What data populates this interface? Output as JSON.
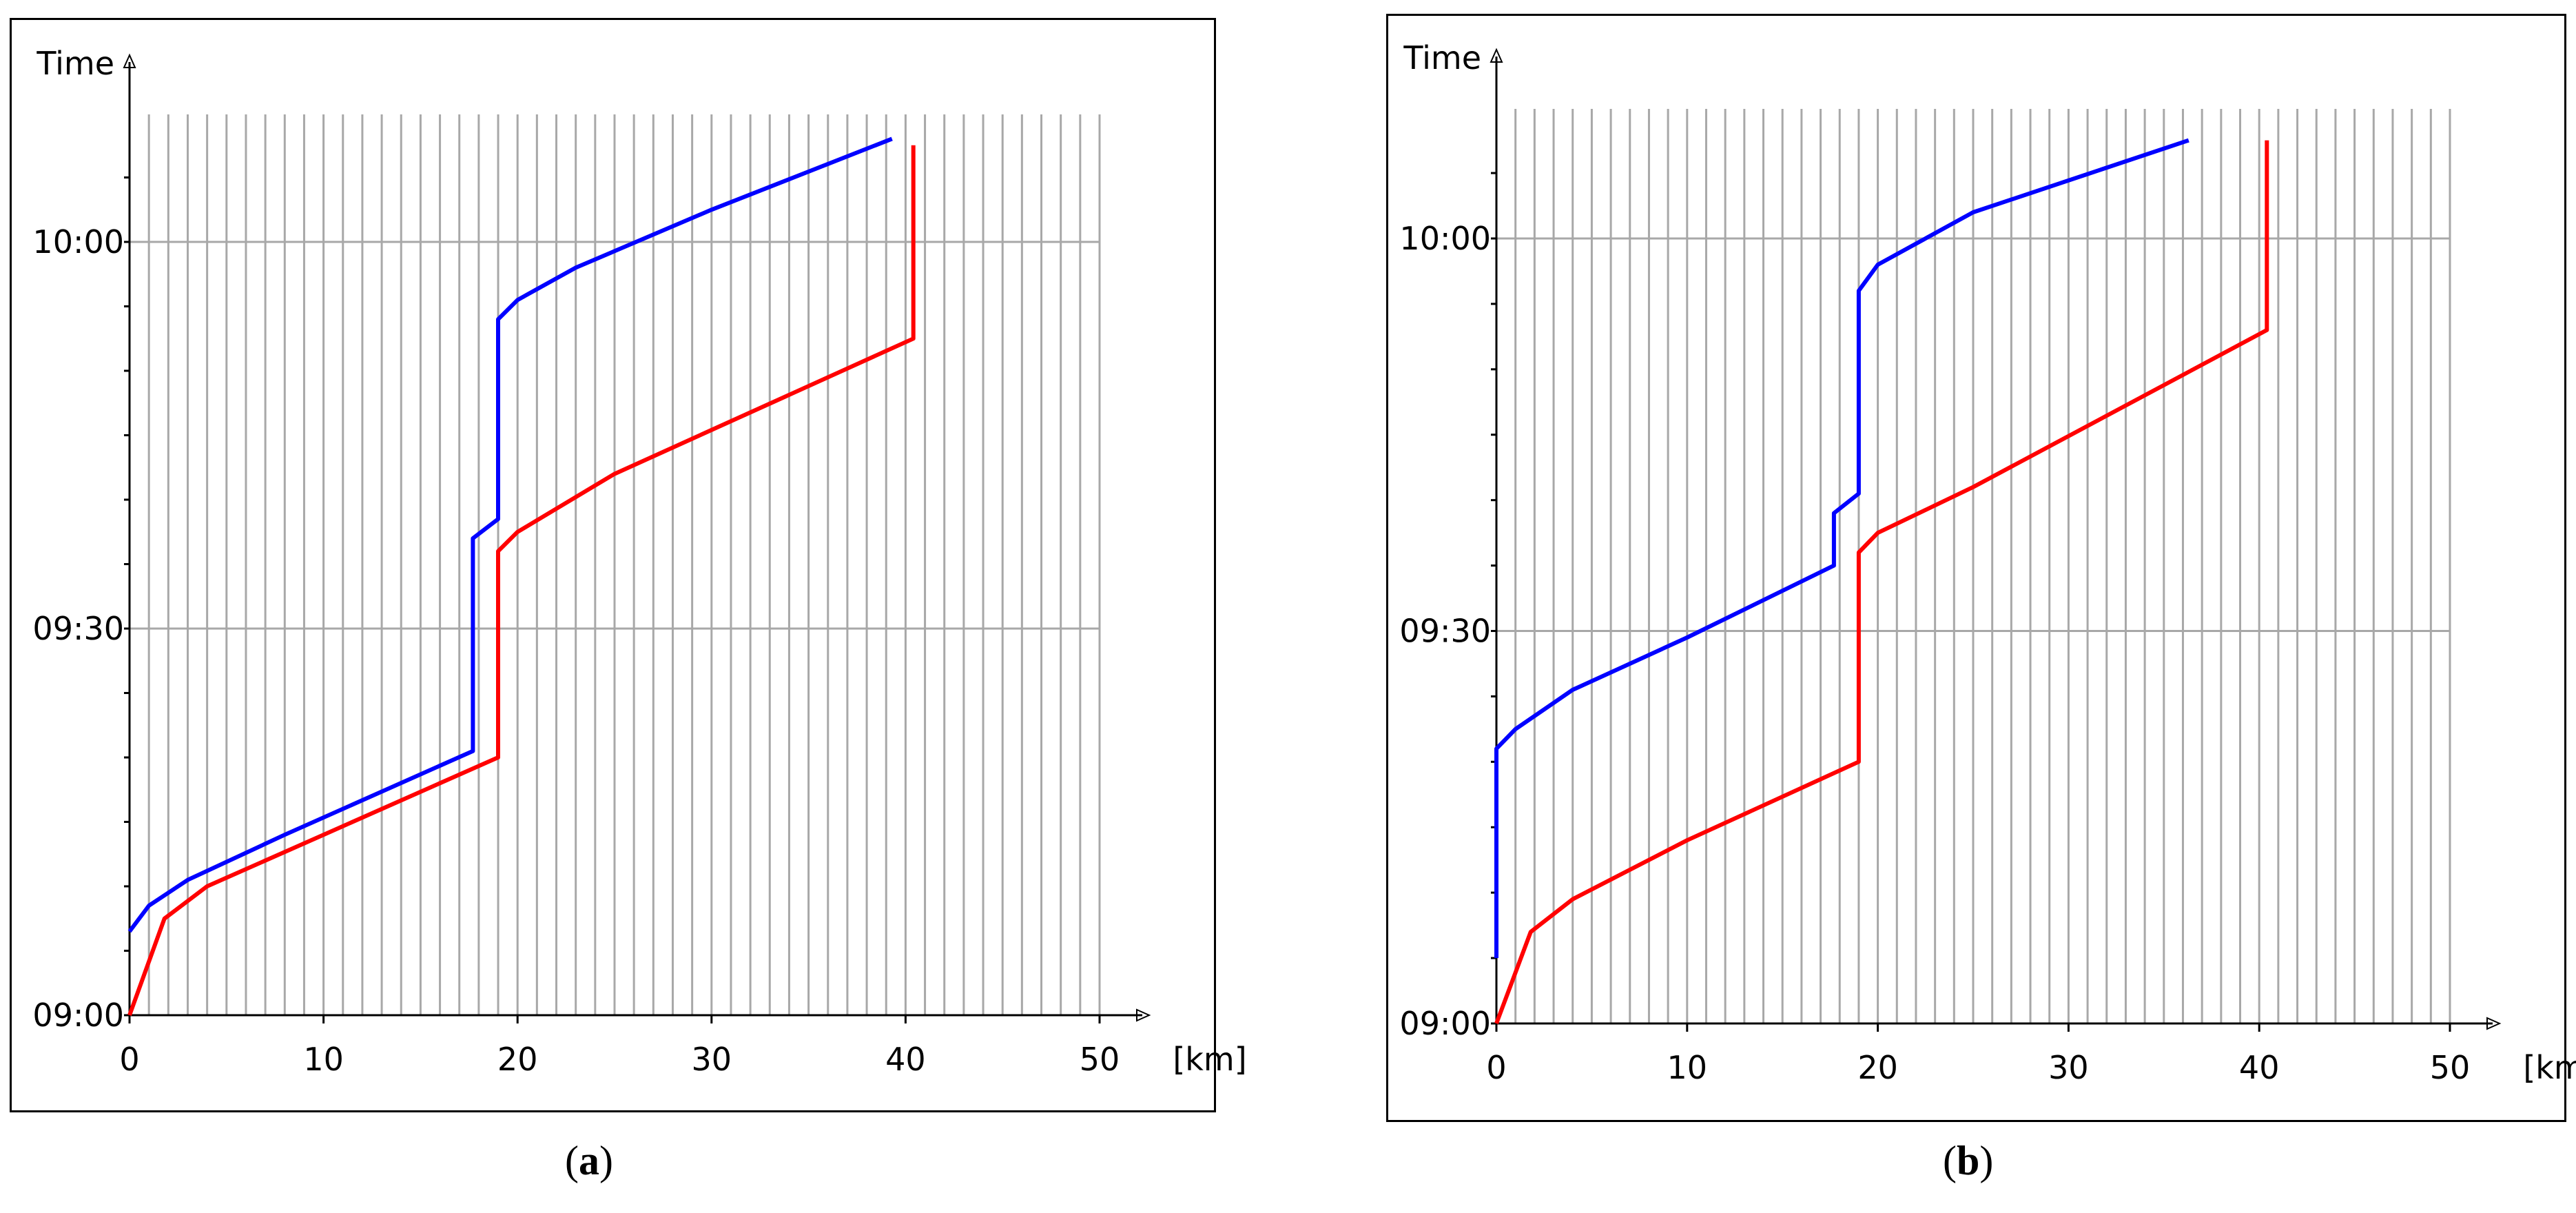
{
  "chart_data": [
    {
      "type": "line",
      "panel_label": "a",
      "ylabel": "Time",
      "xlabel": "[km]",
      "xlim": [
        0,
        50
      ],
      "ylim": [
        "09:00",
        "10:08"
      ],
      "x_ticks": [
        "0",
        "10",
        "20",
        "30",
        "40",
        "50"
      ],
      "y_ticks": [
        "09:00",
        "09:30",
        "10:00"
      ],
      "grid": "vertical lines every 1 km, horizontal lines at 09:30 and 10:00",
      "series": [
        {
          "color": "#0000ff",
          "points": [
            [
              "0",
              "09:06.5"
            ],
            [
              "1",
              "09:08.5"
            ],
            [
              "3",
              "09:10.5"
            ],
            [
              "8",
              "09:14"
            ],
            [
              "17.7",
              "09:20.5"
            ],
            [
              "17.7",
              "09:37"
            ],
            [
              "19",
              "09:38.5"
            ],
            [
              "19",
              "09:54"
            ],
            [
              "20",
              "09:55.5"
            ],
            [
              "23",
              "09:58"
            ],
            [
              "30",
              "10:02.5"
            ],
            [
              "39.3",
              "10:08"
            ]
          ]
        },
        {
          "color": "#ff0000",
          "points": [
            [
              "0",
              "09:00"
            ],
            [
              "1.8",
              "09:07.5"
            ],
            [
              "4",
              "09:10"
            ],
            [
              "10",
              "09:14"
            ],
            [
              "19",
              "09:20"
            ],
            [
              "19",
              "09:36"
            ],
            [
              "20",
              "09:37.5"
            ],
            [
              "25",
              "09:42"
            ],
            [
              "40.4",
              "09:52.5"
            ],
            [
              "40.4",
              "10:07.5"
            ]
          ]
        }
      ]
    },
    {
      "type": "line",
      "panel_label": "b",
      "ylabel": "Time",
      "xlabel": "[km]",
      "xlim": [
        0,
        50
      ],
      "ylim": [
        "09:00",
        "10:08"
      ],
      "x_ticks": [
        "0",
        "10",
        "20",
        "30",
        "40",
        "50"
      ],
      "y_ticks": [
        "09:00",
        "09:30",
        "10:00"
      ],
      "grid": "vertical lines every 1 km, horizontal lines at 09:30 and 10:00",
      "series": [
        {
          "color": "#0000ff",
          "points": [
            [
              "0",
              "09:05"
            ],
            [
              "0",
              "09:21"
            ],
            [
              "1",
              "09:22.5"
            ],
            [
              "4",
              "09:25.5"
            ],
            [
              "10",
              "09:29.5"
            ],
            [
              "17.7",
              "09:35"
            ],
            [
              "17.7",
              "09:39"
            ],
            [
              "19",
              "09:40.5"
            ],
            [
              "19",
              "09:56"
            ],
            [
              "20",
              "09:58"
            ],
            [
              "25",
              "10:02"
            ],
            [
              "36.3",
              "10:07.5"
            ]
          ]
        },
        {
          "color": "#ff0000",
          "points": [
            [
              "0",
              "09:00"
            ],
            [
              "1.8",
              "09:07"
            ],
            [
              "4",
              "09:09.5"
            ],
            [
              "10",
              "09:14"
            ],
            [
              "19",
              "09:20"
            ],
            [
              "19",
              "09:36"
            ],
            [
              "20",
              "09:37.5"
            ],
            [
              "25",
              "09:41"
            ],
            [
              "40.4",
              "09:53"
            ],
            [
              "40.4",
              "10:07.5"
            ]
          ]
        }
      ]
    }
  ],
  "captions": {
    "a": "a",
    "b": "b"
  }
}
